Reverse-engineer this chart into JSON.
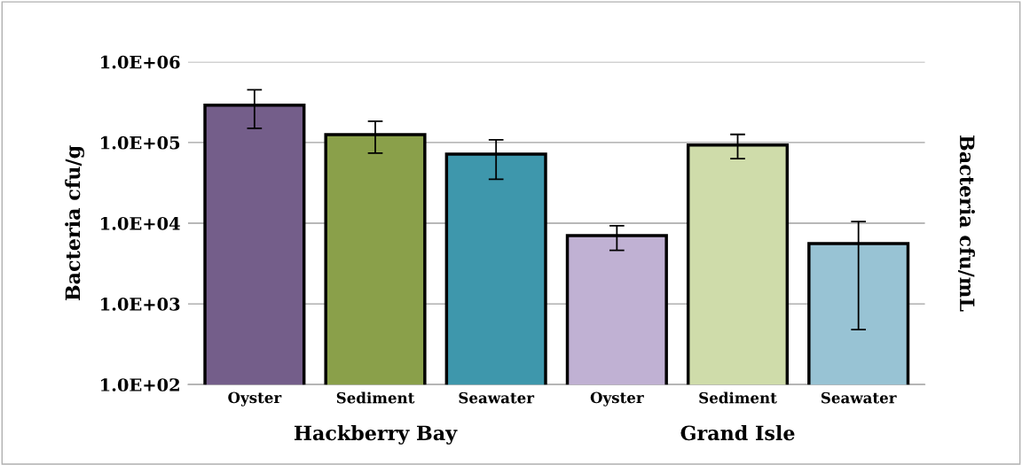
{
  "chart_data": {
    "type": "bar",
    "ylabel": "Bacteria cfu/g",
    "y2label": "Bacteria cfu/mL",
    "categories": [
      "Oyster",
      "Sediment",
      "Seawater",
      "Oyster",
      "Sediment",
      "Seawater"
    ],
    "values": [
      290000,
      125000,
      72000,
      7000,
      93000,
      5600
    ],
    "colors": [
      "#745e8a",
      "#8aa04a",
      "#3e97ac",
      "#c0b1d3",
      "#cfdcaa",
      "#98c3d4"
    ],
    "errors": [
      [
        150000,
        450000
      ],
      [
        74000,
        184000
      ],
      [
        35000,
        108000
      ],
      [
        4600,
        9300
      ],
      [
        63000,
        126000
      ],
      [
        480,
        10500
      ]
    ],
    "log": "y",
    "ylim": [
      100,
      1000000
    ],
    "yticks": [
      {
        "value": 100,
        "label": "1.0E+02"
      },
      {
        "value": 1000,
        "label": "1.0E+03"
      },
      {
        "value": 10000,
        "label": "1.0E+04"
      },
      {
        "value": 100000,
        "label": "1.0E+05"
      },
      {
        "value": 1000000,
        "label": "1.0E+06"
      }
    ],
    "grid": "y",
    "annotations": [
      "Hackberry Bay",
      "Grand Isle"
    ]
  }
}
